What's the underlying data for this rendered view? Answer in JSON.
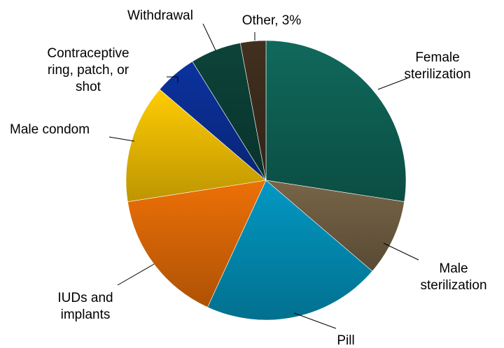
{
  "chart_data": {
    "type": "pie",
    "title": "",
    "categories": [
      "Female sterilization",
      "Male sterilization",
      "Pill",
      "IUDs and implants",
      "Male condom",
      "Contraceptive ring, patch, or shot",
      "Withdrawal",
      "Other"
    ],
    "values": [
      28,
      9,
      21,
      16,
      14,
      5,
      6,
      3
    ],
    "colors": [
      "#0e5e52",
      "#6b5a40",
      "#0388ae",
      "#d46406",
      "#e7b603",
      "#0a2d8e",
      "#0b3d34",
      "#3b2b1c"
    ],
    "labels": [
      [
        "Female",
        "sterilization"
      ],
      [
        "Male",
        "sterilization"
      ],
      [
        "Pill"
      ],
      [
        "IUDs and",
        "implants"
      ],
      [
        "Male condom"
      ],
      [
        "Contraceptive",
        "ring, patch, or",
        "shot"
      ],
      [
        "Withdrawal"
      ],
      [
        "Other, 3%"
      ]
    ],
    "legend": "none"
  }
}
